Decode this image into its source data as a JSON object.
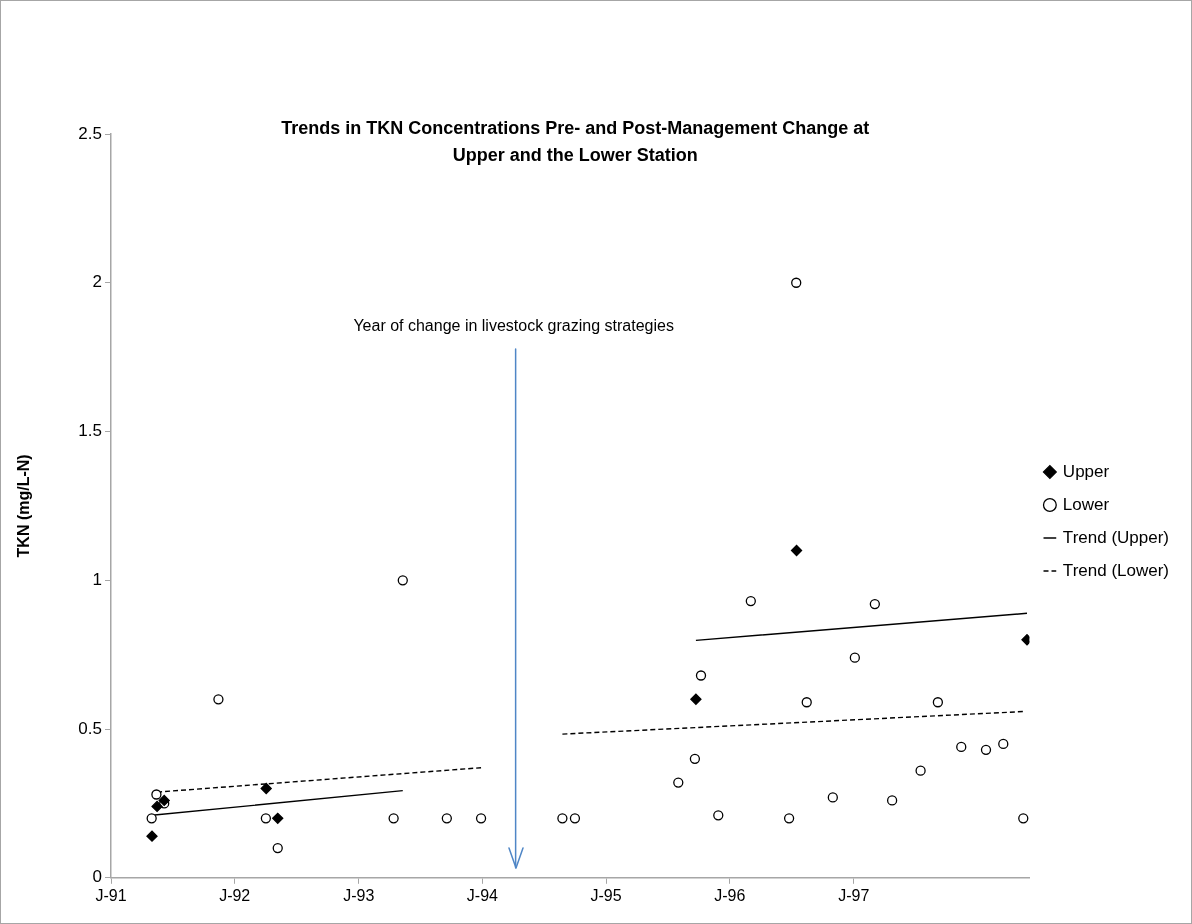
{
  "chart_data": {
    "type": "scatter",
    "title": "Trends in TKN Concentrations Pre- and Post-Management Change at\nUpper and the Lower Station",
    "ylabel": "TKN (mg/L-N)",
    "xlim": [
      "1991-01-01",
      "1998-06-03"
    ],
    "xticks": [
      {
        "value": "1991-01-01",
        "label": "J-91"
      },
      {
        "value": "1992-01-01",
        "label": "J-92"
      },
      {
        "value": "1993-01-01",
        "label": "J-93"
      },
      {
        "value": "1994-01-01",
        "label": "J-94"
      },
      {
        "value": "1995-01-01",
        "label": "J-95"
      },
      {
        "value": "1996-01-01",
        "label": "J-96"
      },
      {
        "value": "1997-01-01",
        "label": "J-97"
      }
    ],
    "ylim": [
      0,
      2.5
    ],
    "yticks": [
      0,
      0.5,
      1,
      1.5,
      2,
      2.5
    ],
    "grid": false,
    "legend": "right",
    "ref_lines": [
      {
        "axis": "x",
        "value": "1994-04-09",
        "label": "Year of change in livestock grazing strategies",
        "color": "#4f86c6"
      }
    ],
    "series": [
      {
        "name": "Upper",
        "marker": "diamond",
        "color": "#000000",
        "x": [
          "1991-05-02",
          "1991-05-17",
          "1991-06-07",
          "1992-04-03",
          "1992-05-07",
          "1995-09-23",
          "1996-07-16",
          "1998-05-27"
        ],
        "values": [
          0.14,
          0.24,
          0.26,
          0.3,
          0.2,
          0.6,
          1.1,
          0.8
        ]
      },
      {
        "name": "Lower",
        "marker": "circle",
        "color": "#000000",
        "x": [
          "1991-05-01",
          "1991-05-15",
          "1991-06-07",
          "1991-11-14",
          "1992-04-02",
          "1992-05-07",
          "1993-04-14",
          "1993-05-11",
          "1993-09-18",
          "1993-12-28",
          "1994-08-25",
          "1994-10-01",
          "1995-08-02",
          "1995-09-20",
          "1995-10-08",
          "1995-11-28",
          "1996-03-03",
          "1996-06-24",
          "1996-07-15",
          "1996-08-15",
          "1996-10-31",
          "1997-01-04",
          "1997-03-04",
          "1997-04-24",
          "1997-07-17",
          "1997-09-06",
          "1997-11-14",
          "1998-01-26",
          "1998-03-18",
          "1998-05-16"
        ],
        "values": [
          0.2,
          0.28,
          0.25,
          0.6,
          0.2,
          0.1,
          0.2,
          1.0,
          0.2,
          0.2,
          0.2,
          0.2,
          0.32,
          0.4,
          0.68,
          0.21,
          0.93,
          0.2,
          2.0,
          0.59,
          0.27,
          0.74,
          0.92,
          0.26,
          0.36,
          0.59,
          0.44,
          0.43,
          0.45,
          0.2
        ]
      },
      {
        "name": "Trend (Upper)",
        "type": "line",
        "marker": "none",
        "line_style": "solid",
        "color": "#000000",
        "x": [
          "1991-05-02",
          "1993-05-11",
          "1994-07-01",
          "1995-09-23",
          "1998-05-27"
        ],
        "values": [
          0.21,
          0.293,
          null,
          0.798,
          0.889
        ]
      },
      {
        "name": "Trend (Lower)",
        "type": "line",
        "marker": "none",
        "line_style": "dashed",
        "color": "#000000",
        "x": [
          "1991-05-17",
          "1993-12-28",
          "1994-04-20",
          "1994-08-25",
          "1998-05-19"
        ],
        "values": [
          0.288,
          0.37,
          null,
          0.483,
          0.559
        ]
      }
    ]
  }
}
